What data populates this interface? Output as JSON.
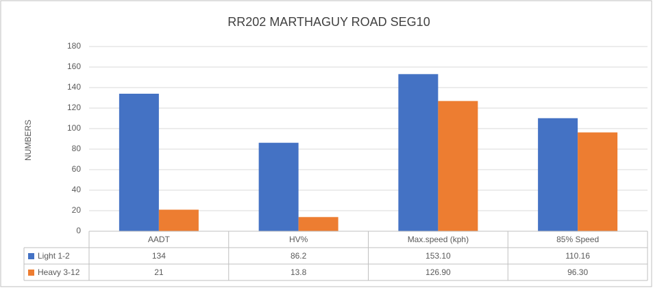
{
  "chart_data": {
    "type": "bar",
    "title": "RR202 MARTHAGUY ROAD SEG10",
    "y_label": "NUMBERS",
    "categories": [
      "AADT",
      "HV%",
      "Max.speed (kph)",
      "85% Speed"
    ],
    "series": [
      {
        "name": "Light  1-2",
        "color": "#4472c4",
        "values": [
          134,
          86.2,
          153.1,
          110.16
        ],
        "value_labels": [
          "134",
          "86.2",
          "153.10",
          "110.16"
        ]
      },
      {
        "name": "Heavy 3-12",
        "color": "#ed7d31",
        "values": [
          21,
          13.8,
          126.9,
          96.3
        ],
        "value_labels": [
          "21",
          "13.8",
          "126.90",
          "96.30"
        ]
      }
    ],
    "ylim": [
      0,
      180
    ],
    "yticks": [
      0,
      20,
      40,
      60,
      80,
      100,
      120,
      140,
      160,
      180
    ],
    "grid": true
  }
}
